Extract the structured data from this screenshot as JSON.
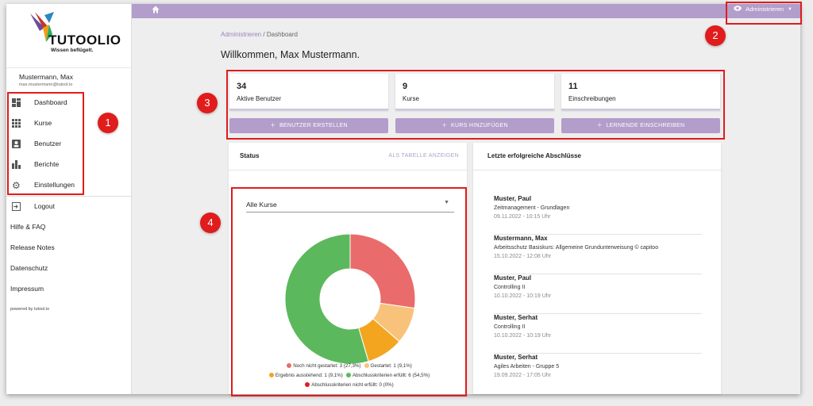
{
  "brand": {
    "name": "TUTOOLIO",
    "tagline": "Wissen beflügelt."
  },
  "user": {
    "name": "Mustermann, Max",
    "email": "max.mustermann@tutool.io"
  },
  "nav": [
    {
      "label": "Dashboard",
      "icon": "dashboard-icon"
    },
    {
      "label": "Kurse",
      "icon": "grid-icon"
    },
    {
      "label": "Benutzer",
      "icon": "user-card-icon"
    },
    {
      "label": "Berichte",
      "icon": "bar-chart-icon"
    },
    {
      "label": "Einstellungen",
      "icon": "gear-icon"
    }
  ],
  "logout": "Logout",
  "links": [
    "Hilfe & FAQ",
    "Release Notes",
    "Datenschutz",
    "Impressum"
  ],
  "powered": "powered by tutool.io",
  "topbar": {
    "admin_label": "Administrieren"
  },
  "breadcrumb": {
    "parent": "Administrieren",
    "separator": "/",
    "current": "Dashboard"
  },
  "welcome": "Willkommen, Max Mustermann.",
  "stats": [
    {
      "value": "34",
      "label": "Aktive Benutzer",
      "action": "BENUTZER ERSTELLEN"
    },
    {
      "value": "9",
      "label": "Kurse",
      "action": "KURS HINZUFÜGEN"
    },
    {
      "value": "11",
      "label": "Einschreibungen",
      "action": "LERNENDE EINSCHREIBEN"
    }
  ],
  "status_panel": {
    "title": "Status",
    "table_link": "ALS TABELLE ANZEIGEN",
    "filter": "Alle Kurse"
  },
  "chart_data": {
    "type": "pie",
    "donut": true,
    "series": [
      {
        "name": "Noch nicht gestartet",
        "label": "Noch nicht gestartet: 3 (27,3%)",
        "value": 3,
        "color": "#ea6b6b"
      },
      {
        "name": "Gestartet",
        "label": "Gestartet: 1 (9,1%)",
        "value": 1,
        "color": "#f9c27a"
      },
      {
        "name": "Ergebnis ausstehend",
        "label": "Ergebnis ausstehend: 1 (9,1%)",
        "value": 1,
        "color": "#f3a520"
      },
      {
        "name": "Abschlusskriterien erfüllt",
        "label": "Abschlusskriterien erfüllt: 6 (54,5%)",
        "value": 6,
        "color": "#5cb85c"
      },
      {
        "name": "Abschlusskriterien nicht erfüllt",
        "label": "Abschlusskriterien nicht erfüllt: 0 (0%)",
        "value": 0,
        "color": "#e01c1c"
      }
    ]
  },
  "recent_panel": {
    "title": "Letzte erfolgreiche Abschlüsse",
    "entries": [
      {
        "name": "Muster, Paul",
        "course": "Zeitmanagement - Grundlagen",
        "date": "09.11.2022 - 10:15 Uhr"
      },
      {
        "name": "Mustermann, Max",
        "course": "Arbeitsschutz Basiskurs: Allgemeine Grundunterweisung © capitoo",
        "date": "15.10.2022 - 12:08 Uhr"
      },
      {
        "name": "Muster, Paul",
        "course": "Controlling II",
        "date": "10.10.2022 - 10:19 Uhr"
      },
      {
        "name": "Muster, Serhat",
        "course": "Controlling II",
        "date": "10.10.2022 - 10:19 Uhr"
      },
      {
        "name": "Muster, Serhat",
        "course": "Agiles Arbeiten - Gruppe 5",
        "date": "19.09.2022 - 17:05 Uhr"
      }
    ]
  },
  "callouts": [
    "1",
    "2",
    "3",
    "4"
  ],
  "colors": {
    "accent": "#b39dcb",
    "callout": "#e01c1c"
  }
}
